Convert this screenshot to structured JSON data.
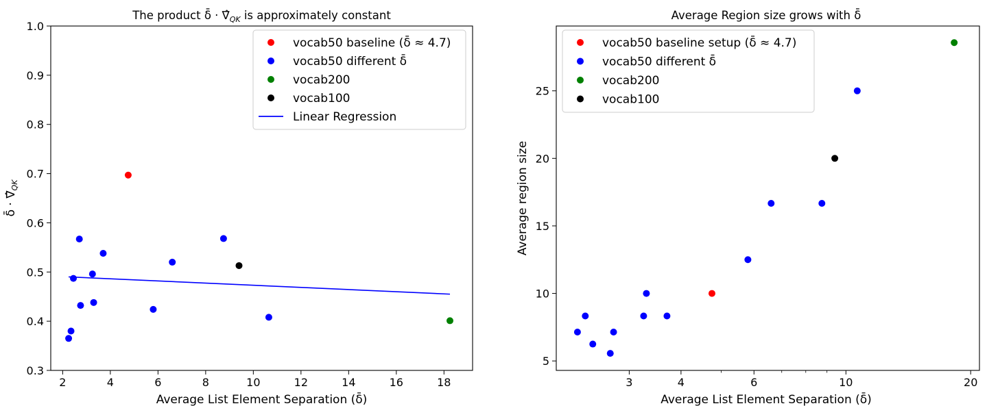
{
  "chart_data": [
    {
      "type": "scatter",
      "title": "The product δ̄ · ∇̂QK is approximately constant",
      "title_parts": {
        "prefix": "The product ",
        "symbol": "δ̄ · ∇̂",
        "subscript": "QK",
        "suffix": " is approximately constant"
      },
      "xlabel": "Average List Element Separation (δ̄)",
      "ylabel": "δ̄ · ∇̂QK",
      "ylabel_parts": {
        "main": "δ̄ · ∇̂",
        "subscript": "QK"
      },
      "xscale": "linear",
      "xlim": [
        1.5,
        19.2
      ],
      "ylim": [
        0.3,
        1.0
      ],
      "xticks": [
        2,
        4,
        6,
        8,
        10,
        12,
        14,
        16,
        18
      ],
      "xtick_labels": [
        "2",
        "4",
        "6",
        "8",
        "10",
        "12",
        "14",
        "16",
        "18"
      ],
      "yticks": [
        0.3,
        0.4,
        0.5,
        0.6,
        0.7,
        0.8,
        0.9,
        1.0
      ],
      "ytick_labels": [
        "0.3",
        "0.4",
        "0.5",
        "0.6",
        "0.7",
        "0.8",
        "0.9",
        "1.0"
      ],
      "legend_position": "top-right",
      "series": [
        {
          "name": "vocab50 baseline  (δ̄ ≈ 4.7)",
          "color": "#ff0000",
          "kind": "scatter",
          "points": [
            [
              4.75,
              0.697
            ]
          ]
        },
        {
          "name": "vocab50 different δ̄",
          "color": "#0000ff",
          "kind": "scatter",
          "points": [
            [
              2.25,
              0.365
            ],
            [
              2.35,
              0.38
            ],
            [
              2.45,
              0.487
            ],
            [
              2.7,
              0.567
            ],
            [
              2.75,
              0.432
            ],
            [
              3.25,
              0.496
            ],
            [
              3.3,
              0.438
            ],
            [
              3.7,
              0.538
            ],
            [
              5.8,
              0.424
            ],
            [
              6.6,
              0.52
            ],
            [
              8.75,
              0.568
            ],
            [
              10.65,
              0.408
            ]
          ]
        },
        {
          "name": "vocab200",
          "color": "#008000",
          "kind": "scatter",
          "points": [
            [
              18.25,
              0.401
            ]
          ]
        },
        {
          "name": "vocab100",
          "color": "#000000",
          "kind": "scatter",
          "points": [
            [
              9.4,
              0.513
            ]
          ]
        },
        {
          "name": "Linear Regression",
          "color": "#0000ff",
          "kind": "line",
          "points": [
            [
              2.25,
              0.49
            ],
            [
              18.25,
              0.455
            ]
          ]
        }
      ]
    },
    {
      "type": "scatter",
      "title": "Average Region size grows with δ̄",
      "title_parts": {
        "prefix": "Average Region size grows with ",
        "symbol": "δ̄"
      },
      "xlabel": "Average List Element Separation (δ̄)",
      "ylabel": "Average region size",
      "xscale": "log",
      "xlim": [
        2.0,
        21.0
      ],
      "ylim": [
        4.3,
        29.8
      ],
      "xticks": [
        3,
        4,
        6,
        10,
        20
      ],
      "xtick_labels": [
        "3",
        "4",
        "6",
        "10",
        "20"
      ],
      "minor_xticks": [
        5,
        7,
        8,
        9
      ],
      "yticks": [
        5,
        10,
        15,
        20,
        25
      ],
      "ytick_labels": [
        "5",
        "10",
        "15",
        "20",
        "25"
      ],
      "legend_position": "top-left",
      "series": [
        {
          "name": "vocab50 baseline setup  (δ̄ ≈ 4.7)",
          "color": "#ff0000",
          "kind": "scatter",
          "points": [
            [
              4.75,
              10.0
            ]
          ]
        },
        {
          "name": "vocab50 different δ̄",
          "color": "#0000ff",
          "kind": "scatter",
          "points": [
            [
              2.25,
              7.14
            ],
            [
              2.35,
              8.33
            ],
            [
              2.45,
              6.25
            ],
            [
              2.7,
              5.56
            ],
            [
              2.75,
              7.14
            ],
            [
              3.25,
              8.33
            ],
            [
              3.3,
              10.0
            ],
            [
              3.7,
              8.33
            ],
            [
              5.8,
              12.5
            ],
            [
              6.6,
              16.67
            ],
            [
              8.75,
              16.67
            ],
            [
              10.65,
              25.0
            ]
          ]
        },
        {
          "name": "vocab200",
          "color": "#008000",
          "kind": "scatter",
          "points": [
            [
              18.25,
              28.57
            ]
          ]
        },
        {
          "name": "vocab100",
          "color": "#000000",
          "kind": "scatter",
          "points": [
            [
              9.4,
              20.0
            ]
          ]
        }
      ]
    }
  ]
}
